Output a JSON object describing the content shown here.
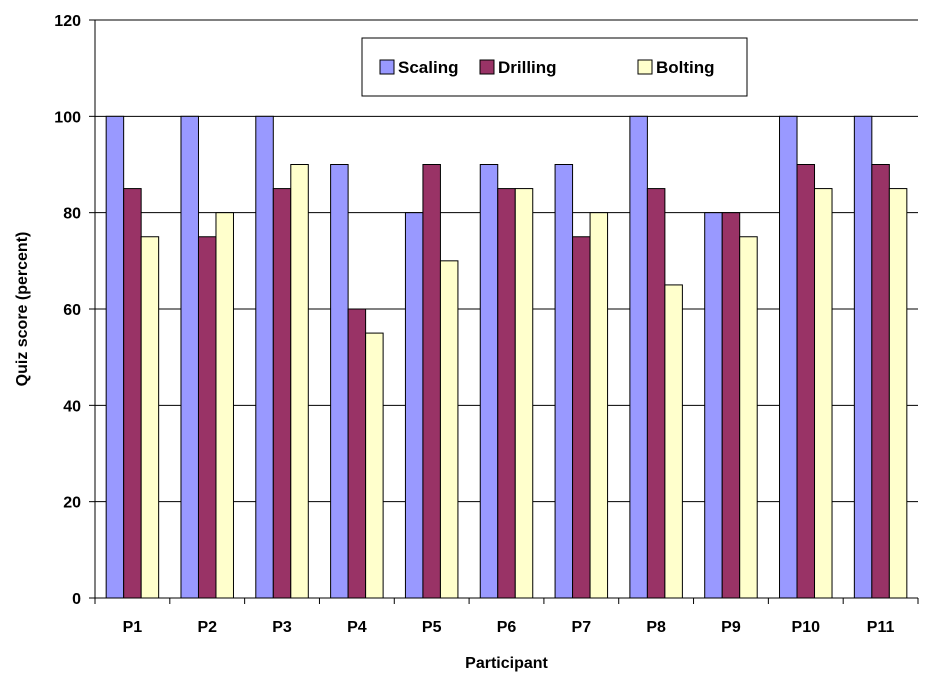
{
  "chart_data": {
    "type": "bar",
    "title": "",
    "xlabel": "Participant",
    "ylabel": "Quiz score (percent)",
    "ylim": [
      0,
      120
    ],
    "yticks": [
      0,
      20,
      40,
      60,
      80,
      100,
      120
    ],
    "grid": true,
    "legend_position": "top-center",
    "categories": [
      "P1",
      "P2",
      "P3",
      "P4",
      "P5",
      "P6",
      "P7",
      "P8",
      "P9",
      "P10",
      "P11"
    ],
    "series": [
      {
        "name": "Scaling",
        "color": "#9999FF",
        "values": [
          100,
          100,
          100,
          90,
          80,
          90,
          90,
          100,
          80,
          100,
          100
        ]
      },
      {
        "name": "Drilling",
        "color": "#993366",
        "values": [
          85,
          75,
          85,
          60,
          90,
          85,
          75,
          85,
          80,
          90,
          90
        ]
      },
      {
        "name": "Bolting",
        "color": "#FFFFCC",
        "values": [
          75,
          80,
          90,
          55,
          70,
          85,
          80,
          65,
          75,
          85,
          85
        ]
      }
    ]
  }
}
